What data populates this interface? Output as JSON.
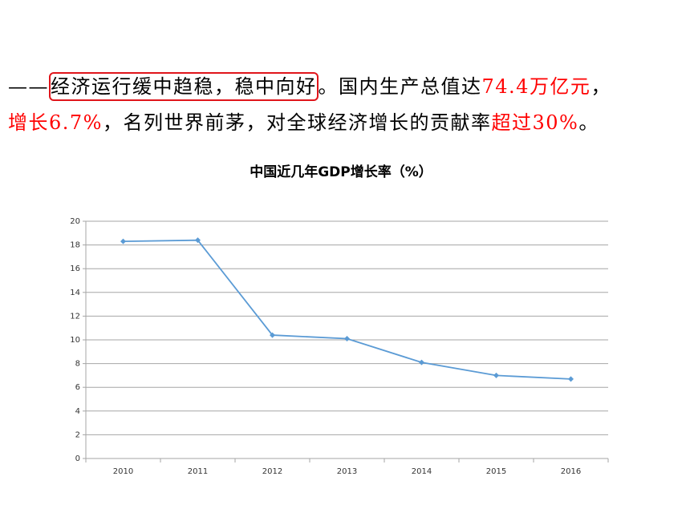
{
  "paragraph": {
    "lines": [
      [
        {
          "text": "——",
          "color": "#000000"
        },
        {
          "text": "经济运行缓中趋稳，稳中向好",
          "color": "#000000",
          "boxed": true
        },
        {
          "text": "。国内生产总值达",
          "color": "#000000"
        },
        {
          "text": "74.4万亿元",
          "color": "#ff0000"
        },
        {
          "text": "，",
          "color": "#000000"
        }
      ],
      [
        {
          "text": "增长6.7%",
          "color": "#ff0000"
        },
        {
          "text": "，名列世界前茅，对全球经济增长的贡献率",
          "color": "#000000"
        },
        {
          "text": "超过30%",
          "color": "#ff0000"
        },
        {
          "text": "。",
          "color": "#000000"
        }
      ]
    ]
  },
  "chart_data": {
    "type": "line",
    "title": "中国近几年GDP增长率（%）",
    "categories": [
      "2010",
      "2011",
      "2012",
      "2013",
      "2014",
      "2015",
      "2016"
    ],
    "values": [
      18.3,
      18.4,
      10.4,
      10.1,
      8.1,
      7.0,
      6.7
    ],
    "color": "#5b9bd5",
    "ylim": [
      0,
      20
    ],
    "yticks": [
      0,
      2,
      4,
      6,
      8,
      10,
      12,
      14,
      16,
      18,
      20
    ],
    "grid": true
  }
}
